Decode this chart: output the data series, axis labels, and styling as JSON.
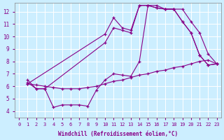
{
  "xlabel": "Windchill (Refroidissement éolien,°C)",
  "ylabel": "",
  "bg_color": "#cceeff",
  "line_color": "#880088",
  "grid_color": "#ffffff",
  "xlim": [
    -0.5,
    23.5
  ],
  "ylim": [
    3.5,
    12.7
  ],
  "yticks": [
    4,
    5,
    6,
    7,
    8,
    9,
    10,
    11,
    12
  ],
  "xticks": [
    0,
    1,
    2,
    3,
    4,
    5,
    6,
    7,
    8,
    9,
    10,
    11,
    12,
    13,
    14,
    15,
    16,
    17,
    18,
    19,
    20,
    21,
    22,
    23
  ],
  "lines": [
    {
      "x": [
        1,
        2,
        3,
        4,
        5,
        6,
        7,
        8,
        9,
        10,
        11,
        12,
        13,
        14,
        15,
        16,
        17,
        18,
        19,
        20,
        21,
        22,
        23
      ],
      "y": [
        6.3,
        5.8,
        5.8,
        4.3,
        4.5,
        4.5,
        4.5,
        4.4,
        5.7,
        6.5,
        7.0,
        6.9,
        6.8,
        8.0,
        12.5,
        12.5,
        12.2,
        12.2,
        12.2,
        11.2,
        10.3,
        8.6,
        7.8
      ]
    },
    {
      "x": [
        1,
        10,
        11,
        12,
        13,
        14,
        15,
        16,
        17,
        18,
        19,
        20,
        21,
        22,
        23
      ],
      "y": [
        6.2,
        10.2,
        11.5,
        10.7,
        10.5,
        12.5,
        12.5,
        12.3,
        12.2,
        12.2,
        11.2,
        10.3,
        8.5,
        7.7,
        7.8
      ]
    },
    {
      "x": [
        1,
        2,
        3,
        4,
        5,
        6,
        7,
        8,
        9,
        10,
        11,
        12,
        13,
        14,
        15,
        16,
        17,
        18,
        19,
        20,
        21,
        22,
        23
      ],
      "y": [
        6.2,
        6.1,
        6.0,
        5.9,
        5.8,
        5.8,
        5.8,
        5.9,
        6.0,
        6.2,
        6.4,
        6.5,
        6.7,
        6.9,
        7.0,
        7.2,
        7.3,
        7.5,
        7.6,
        7.8,
        8.0,
        8.1,
        7.8
      ]
    },
    {
      "x": [
        1,
        2,
        3,
        10,
        11,
        12,
        13,
        14,
        15,
        16,
        17,
        18,
        19,
        20,
        21,
        22,
        23
      ],
      "y": [
        6.5,
        5.8,
        5.8,
        9.5,
        10.7,
        10.5,
        10.3,
        12.5,
        12.5,
        12.3,
        12.2,
        12.2,
        11.2,
        10.3,
        8.5,
        7.7,
        7.8
      ]
    }
  ]
}
